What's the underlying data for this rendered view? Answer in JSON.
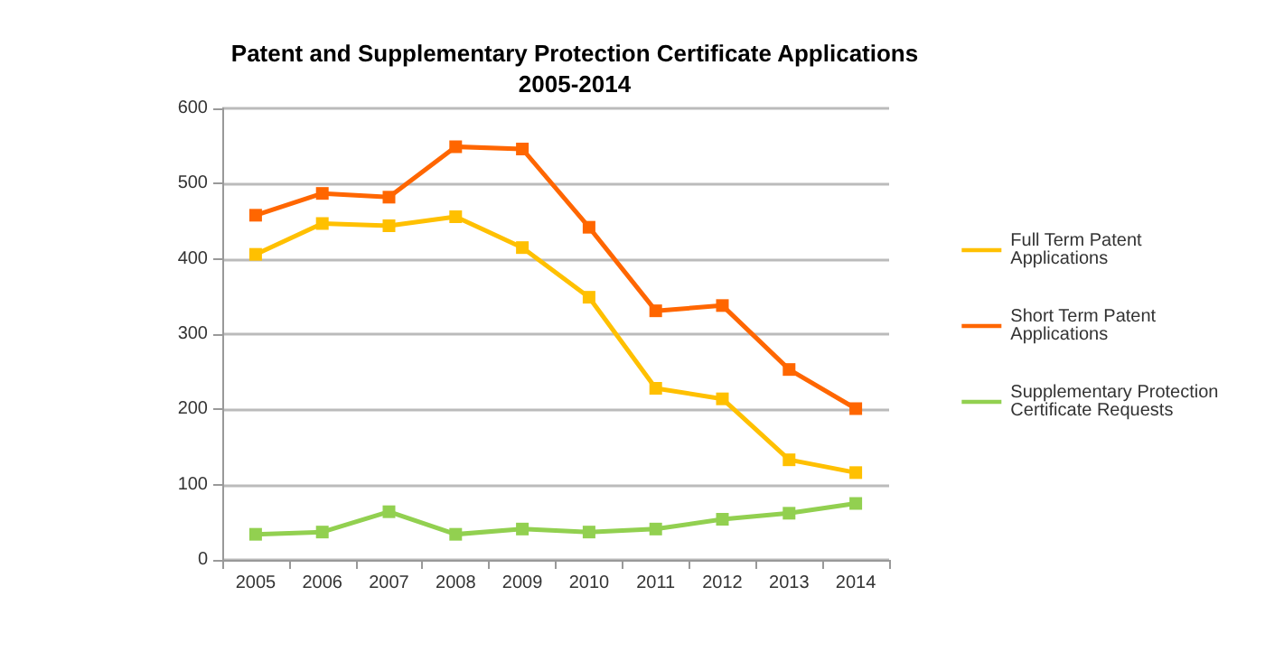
{
  "chart_data": {
    "type": "line",
    "title": "Patent and Supplementary Protection Certificate Applications\n2005-2014",
    "categories": [
      "2005",
      "2006",
      "2007",
      "2008",
      "2009",
      "2010",
      "2011",
      "2012",
      "2013",
      "2014"
    ],
    "series": [
      {
        "name": "Full Term Patent Applications",
        "color": "#ffc000",
        "values": [
          406,
          447,
          444,
          456,
          415,
          349,
          228,
          214,
          133,
          116
        ]
      },
      {
        "name": "Short Term Patent Applications",
        "color": "#ff6600",
        "values": [
          458,
          487,
          482,
          549,
          546,
          442,
          331,
          338,
          253,
          201
        ]
      },
      {
        "name": "Supplementary Protection Certificate Requests",
        "color": "#92d050",
        "values": [
          34,
          37,
          64,
          34,
          41,
          37,
          41,
          54,
          62,
          75
        ]
      }
    ],
    "ylim": [
      0,
      600
    ],
    "yticks": [
      0,
      100,
      200,
      300,
      400,
      500,
      600
    ],
    "grid": "y",
    "legend": "right",
    "marker": "square",
    "line_style": "solid"
  }
}
